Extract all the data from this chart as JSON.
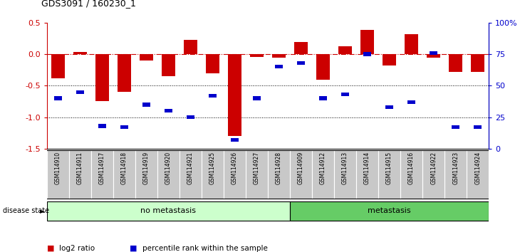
{
  "title": "GDS3091 / 160230_1",
  "samples": [
    "GSM114910",
    "GSM114911",
    "GSM114917",
    "GSM114918",
    "GSM114919",
    "GSM114920",
    "GSM114921",
    "GSM114925",
    "GSM114926",
    "GSM114927",
    "GSM114928",
    "GSM114909",
    "GSM114912",
    "GSM114913",
    "GSM114914",
    "GSM114915",
    "GSM114916",
    "GSM114922",
    "GSM114923",
    "GSM114924"
  ],
  "log2_ratio": [
    -0.38,
    0.04,
    -0.75,
    -0.6,
    -0.1,
    -0.35,
    0.23,
    -0.3,
    -1.3,
    -0.04,
    -0.05,
    0.19,
    -0.4,
    0.13,
    0.38,
    -0.18,
    0.32,
    -0.05,
    -0.28,
    -0.28
  ],
  "percentile_rank": [
    40,
    45,
    18,
    17,
    35,
    30,
    25,
    42,
    7,
    40,
    65,
    68,
    40,
    43,
    75,
    33,
    37,
    76,
    17,
    17
  ],
  "no_metastasis_count": 11,
  "metastasis_count": 9,
  "bar_color": "#cc0000",
  "dot_color": "#0000cc",
  "no_metastasis_color": "#ccffcc",
  "metastasis_color": "#66cc66",
  "yticks_left": [
    0.5,
    0.0,
    -0.5,
    -1.0,
    -1.5
  ],
  "yticks_right": [
    100,
    75,
    50,
    25,
    0
  ],
  "xlabel_area_color": "#c8c8c8",
  "legend_items": [
    "log2 ratio",
    "percentile rank within the sample"
  ]
}
